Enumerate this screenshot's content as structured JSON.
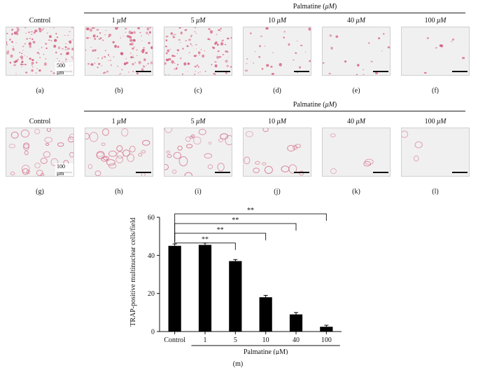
{
  "header_text": "Palmatine (",
  "header_unit": "μM",
  "header_close": ")",
  "control_label": "Control",
  "row1": {
    "concentrations": [
      "1",
      "5",
      "10",
      "40",
      "100"
    ],
    "unit": "μM",
    "letters": [
      "(a)",
      "(b)",
      "(c)",
      "(d)",
      "(e)",
      "(f)"
    ],
    "scale_text": "500 μm",
    "densities": [
      0.95,
      0.85,
      0.75,
      0.22,
      0.12,
      0.06
    ]
  },
  "row2": {
    "concentrations": [
      "1",
      "5",
      "10",
      "40",
      "100"
    ],
    "unit": "μM",
    "letters": [
      "(g)",
      "(h)",
      "(i)",
      "(j)",
      "(k)",
      "(l)"
    ],
    "scale_text": "100 μm",
    "densities": [
      0.9,
      0.85,
      0.8,
      0.45,
      0.15,
      0.1
    ]
  },
  "figure_label": "(m)",
  "chart_data": {
    "type": "bar",
    "categories": [
      "Control",
      "1",
      "5",
      "10",
      "40",
      "100"
    ],
    "values": [
      45,
      45.5,
      37,
      18,
      9,
      2.5
    ],
    "errors": [
      1.0,
      1.0,
      0.8,
      1.0,
      1.0,
      0.8
    ],
    "ylabel": "TRAP-positive multinuclear cells/field",
    "xlabel": "Palmatine (μM)",
    "ylim": [
      0,
      60
    ],
    "yticks": [
      "0",
      "20",
      "40",
      "60"
    ],
    "significance": [
      {
        "from": "Control",
        "to": "5",
        "label": "**"
      },
      {
        "from": "Control",
        "to": "10",
        "label": "**"
      },
      {
        "from": "Control",
        "to": "40",
        "label": "**"
      },
      {
        "from": "Control",
        "to": "100",
        "label": "**"
      }
    ]
  }
}
